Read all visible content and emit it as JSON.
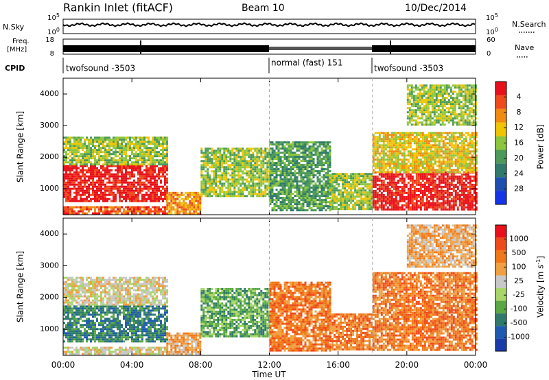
{
  "header": {
    "title": "Rankin Inlet (fitACF)",
    "beam": "Beam 10",
    "date": "10/Dec/2014"
  },
  "info_panels": {
    "nsky_label": "N.Sky",
    "nsearch_label": "N.Search",
    "nsky_ticks": [
      "10^5",
      "10^0"
    ],
    "nsky_right_ticks": [
      "10^5",
      "10^0"
    ],
    "freq_label_top": "Freq.",
    "freq_label_unit": "[MHz]",
    "freq_ticks": [
      "18",
      "8"
    ],
    "nave_label": "Nave",
    "nave_ticks": [
      "60",
      "0"
    ],
    "cpid_label": "CPID",
    "cpid_segments": [
      {
        "label": "twofsound -3503",
        "start_h": 0,
        "end_h": 12
      },
      {
        "label": "normal (fast) 151",
        "start_h": 12,
        "end_h": 18
      },
      {
        "label": "twofsound -3503",
        "start_h": 18,
        "end_h": 24
      }
    ]
  },
  "chart_data": [
    {
      "type": "heatmap",
      "title": "",
      "xlabel": "Time UT",
      "ylabel": "Slant Range [km]",
      "xlim_hours": [
        0,
        24
      ],
      "ylim": [
        180,
        4500
      ],
      "yticks": [
        1000,
        2000,
        3000,
        4000
      ],
      "xticks": [
        "00:00",
        "04:00",
        "08:00",
        "12:00",
        "16:00",
        "20:00",
        "00:00"
      ],
      "colorbar": {
        "label": "Power [dB]",
        "ticks": [
          "4",
          "8",
          "12",
          "16",
          "20",
          "24",
          "28"
        ],
        "colors": [
          "#1434e8",
          "#1e4fb0",
          "#2f7a6a",
          "#4b9a5a",
          "#8cc63c",
          "#f0c400",
          "#f08a10",
          "#ef4a1a",
          "#e8101a"
        ]
      },
      "regions": [
        {
          "t0": 0.0,
          "t1": 6.0,
          "r0": 620,
          "r1": 1750,
          "level": 8
        },
        {
          "t0": 0.0,
          "t1": 6.0,
          "r0": 1750,
          "r1": 2650,
          "level": 4
        },
        {
          "t0": 0.0,
          "t1": 6.0,
          "r0": 200,
          "r1": 450,
          "level": 7
        },
        {
          "t0": 6.0,
          "t1": 8.0,
          "r0": 200,
          "r1": 900,
          "level": 6
        },
        {
          "t0": 8.0,
          "t1": 12.0,
          "r0": 800,
          "r1": 2300,
          "level": 4
        },
        {
          "t0": 12.0,
          "t1": 15.5,
          "r0": 350,
          "r1": 2500,
          "level": 3
        },
        {
          "t0": 15.5,
          "t1": 18.0,
          "r0": 350,
          "r1": 1500,
          "level": 4
        },
        {
          "t0": 18.0,
          "t1": 24.0,
          "r0": 350,
          "r1": 1550,
          "level": 8
        },
        {
          "t0": 18.0,
          "t1": 24.0,
          "r0": 1550,
          "r1": 2800,
          "level": 5
        },
        {
          "t0": 20.0,
          "t1": 24.0,
          "r0": 3000,
          "r1": 4300,
          "level": 4
        }
      ]
    },
    {
      "type": "heatmap",
      "title": "",
      "xlabel": "Time UT",
      "ylabel": "Slant Range [km]",
      "xlim_hours": [
        0,
        24
      ],
      "ylim": [
        180,
        4500
      ],
      "yticks": [
        1000,
        2000,
        3000,
        4000
      ],
      "xticks": [
        "00:00",
        "04:00",
        "08:00",
        "12:00",
        "16:00",
        "20:00",
        "00:00"
      ],
      "colorbar": {
        "label": "Velocity [m s^-1]",
        "ticks": [
          "1000",
          "500",
          "100",
          "25",
          "-25",
          "-100",
          "-500",
          "-1000"
        ],
        "colors": [
          "#1a3ca8",
          "#1e5bb0",
          "#2f7a6a",
          "#5aa843",
          "#a8d668",
          "#c8c8c8",
          "#f0a040",
          "#f07818",
          "#ef4a1a",
          "#e8101a"
        ]
      },
      "regions": [
        {
          "t0": 0.0,
          "t1": 6.0,
          "r0": 620,
          "r1": 1750,
          "level": 2
        },
        {
          "t0": 0.0,
          "t1": 6.0,
          "r0": 1750,
          "r1": 2650,
          "level": 5
        },
        {
          "t0": 0.0,
          "t1": 6.0,
          "r0": 200,
          "r1": 450,
          "level": 5
        },
        {
          "t0": 6.0,
          "t1": 8.0,
          "r0": 200,
          "r1": 900,
          "level": 6
        },
        {
          "t0": 8.0,
          "t1": 12.0,
          "r0": 800,
          "r1": 2300,
          "level": 3
        },
        {
          "t0": 12.0,
          "t1": 15.5,
          "r0": 350,
          "r1": 2500,
          "level": 7
        },
        {
          "t0": 15.5,
          "t1": 18.0,
          "r0": 350,
          "r1": 1500,
          "level": 7
        },
        {
          "t0": 18.0,
          "t1": 24.0,
          "r0": 350,
          "r1": 1550,
          "level": 7
        },
        {
          "t0": 18.0,
          "t1": 24.0,
          "r0": 1550,
          "r1": 2800,
          "level": 7
        },
        {
          "t0": 20.0,
          "t1": 24.0,
          "r0": 3000,
          "r1": 4300,
          "level": 6
        }
      ]
    }
  ]
}
